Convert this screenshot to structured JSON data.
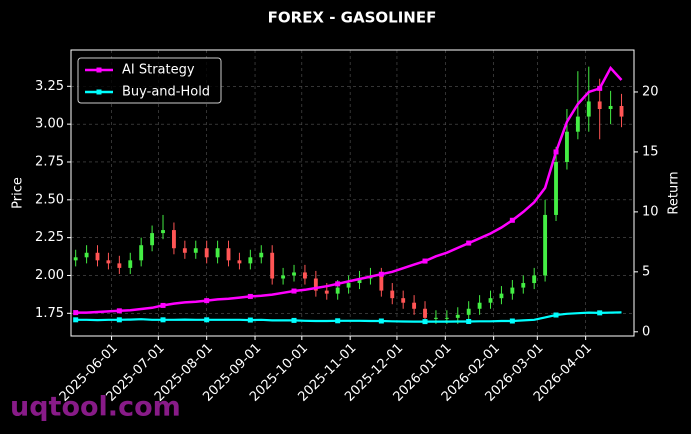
{
  "chart_data": {
    "type": "candlestick",
    "title": "FOREX - GASOLINEF",
    "ylabel": "Price",
    "y2label": "Return",
    "x": [
      "2025-05-09",
      "2025-05-16",
      "2025-05-23",
      "2025-05-30",
      "2025-06-06",
      "2025-06-13",
      "2025-06-20",
      "2025-06-27",
      "2025-07-04",
      "2025-07-11",
      "2025-07-18",
      "2025-07-25",
      "2025-08-01",
      "2025-08-08",
      "2025-08-15",
      "2025-08-22",
      "2025-08-29",
      "2025-09-05",
      "2025-09-12",
      "2025-09-19",
      "2025-09-26",
      "2025-10-03",
      "2025-10-10",
      "2025-10-17",
      "2025-10-24",
      "2025-10-31",
      "2025-11-07",
      "2025-11-14",
      "2025-11-21",
      "2025-11-28",
      "2025-12-05",
      "2025-12-12",
      "2025-12-19",
      "2025-12-26",
      "2026-01-02",
      "2026-01-09",
      "2026-01-16",
      "2026-01-23",
      "2026-01-30",
      "2026-02-06",
      "2026-02-13",
      "2026-02-20",
      "2026-02-27",
      "2026-03-06",
      "2026-03-13",
      "2026-03-20",
      "2026-03-27",
      "2026-04-03",
      "2026-04-10",
      "2026-04-17",
      "2026-04-24"
    ],
    "open": [
      2.1,
      2.12,
      2.15,
      2.1,
      2.08,
      2.05,
      2.1,
      2.2,
      2.28,
      2.3,
      2.18,
      2.15,
      2.18,
      2.12,
      2.18,
      2.1,
      2.08,
      2.12,
      2.15,
      1.98,
      2.0,
      2.02,
      1.98,
      1.9,
      1.88,
      1.92,
      1.95,
      1.98,
      2.0,
      1.9,
      1.85,
      1.82,
      1.78,
      1.72,
      1.72,
      1.72,
      1.74,
      1.78,
      1.82,
      1.85,
      1.88,
      1.92,
      1.95,
      2.0,
      2.4,
      2.75,
      2.95,
      3.05,
      3.15,
      3.1,
      3.12
    ],
    "high": [
      2.17,
      2.2,
      2.2,
      2.15,
      2.13,
      2.15,
      2.25,
      2.33,
      2.4,
      2.35,
      2.23,
      2.23,
      2.23,
      2.23,
      2.23,
      2.15,
      2.17,
      2.2,
      2.2,
      2.05,
      2.07,
      2.07,
      2.03,
      1.95,
      1.97,
      2.0,
      2.03,
      2.05,
      2.05,
      1.95,
      1.9,
      1.87,
      1.83,
      1.77,
      1.77,
      1.79,
      1.83,
      1.87,
      1.9,
      1.93,
      1.97,
      2.0,
      2.05,
      2.5,
      2.85,
      3.1,
      3.35,
      3.38,
      3.3,
      3.22,
      3.2
    ],
    "low": [
      2.06,
      2.08,
      2.06,
      2.04,
      2.01,
      2.01,
      2.06,
      2.16,
      2.24,
      2.14,
      2.11,
      2.11,
      2.08,
      2.08,
      2.06,
      2.04,
      2.04,
      2.08,
      1.94,
      1.94,
      1.96,
      1.94,
      1.86,
      1.84,
      1.84,
      1.88,
      1.91,
      1.94,
      1.86,
      1.81,
      1.78,
      1.74,
      1.68,
      1.68,
      1.68,
      1.68,
      1.7,
      1.74,
      1.78,
      1.81,
      1.84,
      1.88,
      1.91,
      1.96,
      2.36,
      2.7,
      2.9,
      2.95,
      2.9,
      3.0,
      2.98
    ],
    "close": [
      2.12,
      2.15,
      2.1,
      2.08,
      2.05,
      2.1,
      2.2,
      2.28,
      2.3,
      2.18,
      2.15,
      2.18,
      2.12,
      2.18,
      2.1,
      2.08,
      2.12,
      2.15,
      1.98,
      2.0,
      2.02,
      1.98,
      1.9,
      1.88,
      1.92,
      1.95,
      1.98,
      2.0,
      1.9,
      1.85,
      1.82,
      1.78,
      1.72,
      1.72,
      1.72,
      1.74,
      1.78,
      1.82,
      1.85,
      1.88,
      1.92,
      1.95,
      2.0,
      2.4,
      2.75,
      2.95,
      3.05,
      3.15,
      3.1,
      3.12,
      3.05
    ],
    "up_color": "#44ee44",
    "down_color": "#ff5555",
    "series": [
      {
        "name": "AI Strategy",
        "color": "#ff00ff",
        "axis": "y2",
        "values": [
          1.6,
          1.6,
          1.65,
          1.7,
          1.75,
          1.8,
          1.9,
          2.0,
          2.2,
          2.35,
          2.45,
          2.5,
          2.6,
          2.7,
          2.75,
          2.85,
          2.95,
          3.0,
          3.1,
          3.25,
          3.4,
          3.5,
          3.65,
          3.8,
          4.0,
          4.2,
          4.4,
          4.6,
          4.8,
          5.0,
          5.3,
          5.6,
          5.9,
          6.3,
          6.6,
          7.0,
          7.4,
          7.8,
          8.2,
          8.7,
          9.3,
          10.0,
          10.8,
          12.0,
          15.0,
          17.5,
          19.0,
          20.0,
          20.3,
          22.0,
          21.0
        ]
      },
      {
        "name": "Buy-and-Hold",
        "color": "#00ffff",
        "axis": "y2",
        "values": [
          1.0,
          1.0,
          0.98,
          1.0,
          1.0,
          1.02,
          1.05,
          1.0,
          1.0,
          1.0,
          1.02,
          1.0,
          1.0,
          1.0,
          1.0,
          1.0,
          0.98,
          1.0,
          0.95,
          0.95,
          0.95,
          0.92,
          0.9,
          0.9,
          0.92,
          0.92,
          0.92,
          0.9,
          0.9,
          0.88,
          0.86,
          0.85,
          0.85,
          0.85,
          0.85,
          0.86,
          0.86,
          0.88,
          0.88,
          0.9,
          0.9,
          0.95,
          1.0,
          1.2,
          1.4,
          1.5,
          1.55,
          1.6,
          1.58,
          1.6,
          1.62
        ]
      }
    ],
    "xlim": [
      "2025-05-06",
      "2026-05-02"
    ],
    "xticks": [
      "2025-06-01",
      "2025-07-01",
      "2025-08-01",
      "2025-09-01",
      "2025-10-01",
      "2025-11-01",
      "2025-12-01",
      "2026-01-01",
      "2026-02-01",
      "2026-03-01",
      "2026-04-01"
    ],
    "ylim": [
      1.6,
      3.49
    ],
    "yticks": [
      1.75,
      {
        "value": 2.0,
        "label": "2.00"
      },
      2.25,
      {
        "value": 2.5,
        "label": "2.50"
      },
      2.75,
      {
        "value": 3.0,
        "label": "3.00"
      },
      3.25
    ],
    "y2lim": [
      -0.35,
      23.5
    ],
    "y2ticks": [
      0,
      5,
      10,
      15,
      20
    ],
    "grid": true,
    "legend": "upper left"
  },
  "watermark": "uqtool.com"
}
